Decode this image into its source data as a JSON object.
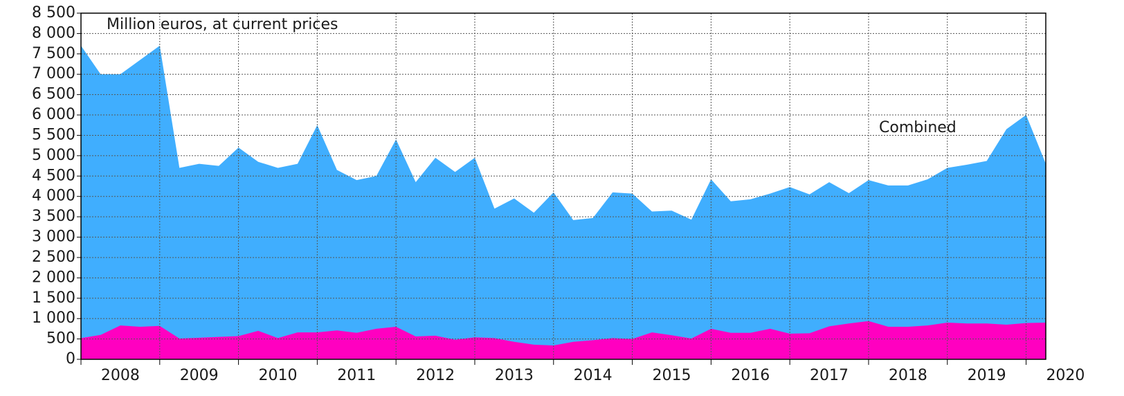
{
  "chart_data": {
    "type": "area",
    "title": "Million euros, at current prices",
    "categories": [
      "2008",
      null,
      null,
      null,
      "2009",
      null,
      null,
      null,
      "2010",
      null,
      null,
      null,
      "2011",
      null,
      null,
      null,
      "2012",
      null,
      null,
      null,
      "2013",
      null,
      null,
      null,
      "2014",
      null,
      null,
      null,
      "2015",
      null,
      null,
      null,
      "2016",
      null,
      null,
      null,
      "2017",
      null,
      null,
      null,
      "2018",
      null,
      null,
      null,
      "2019",
      null,
      null,
      null,
      "2020",
      null
    ],
    "series": [
      {
        "name": "Combined",
        "color": "#40aefe",
        "values": [
          7700,
          7000,
          7000,
          7350,
          7700,
          4700,
          4800,
          4750,
          5200,
          4850,
          4700,
          4800,
          5750,
          4650,
          4400,
          4500,
          5400,
          4350,
          4950,
          4600,
          4950,
          3700,
          3950,
          3600,
          4100,
          3420,
          3470,
          4100,
          4070,
          3630,
          3650,
          3430,
          4420,
          3880,
          3930,
          4070,
          4230,
          4050,
          4350,
          4080,
          4400,
          4270,
          4270,
          4420,
          4700,
          4780,
          4870,
          5650,
          6000,
          4800
        ]
      },
      {
        "color": "#ff00c0",
        "values": [
          520,
          600,
          830,
          800,
          820,
          510,
          530,
          550,
          570,
          700,
          520,
          660,
          660,
          710,
          650,
          750,
          800,
          560,
          580,
          480,
          540,
          520,
          430,
          360,
          340,
          430,
          470,
          520,
          500,
          660,
          590,
          510,
          750,
          650,
          650,
          750,
          630,
          640,
          810,
          880,
          940,
          800,
          800,
          830,
          900,
          880,
          880,
          850,
          890,
          900
        ]
      }
    ],
    "ylim": [
      0,
      8500
    ],
    "yticks": [
      0,
      500,
      {
        "value": 1000,
        "label": "1 000"
      },
      {
        "value": 1500,
        "label": "1 500"
      },
      {
        "value": 2000,
        "label": "2 000"
      },
      {
        "value": 2500,
        "label": "2 500"
      },
      {
        "value": 3000,
        "label": "3 000"
      },
      {
        "value": 3500,
        "label": "3 500"
      },
      {
        "value": 4000,
        "label": "4 000"
      },
      {
        "value": 4500,
        "label": "4 500"
      },
      {
        "value": 5000,
        "label": "5 000"
      },
      {
        "value": 5500,
        "label": "5 500"
      },
      {
        "value": 6000,
        "label": "6 000"
      },
      {
        "value": 6500,
        "label": "6 500"
      },
      {
        "value": 7000,
        "label": "7 000"
      },
      {
        "value": 7500,
        "label": "7 500"
      },
      {
        "value": 8000,
        "label": "8 000"
      },
      {
        "value": 8500,
        "label": "8 500"
      }
    ],
    "grid": true
  }
}
